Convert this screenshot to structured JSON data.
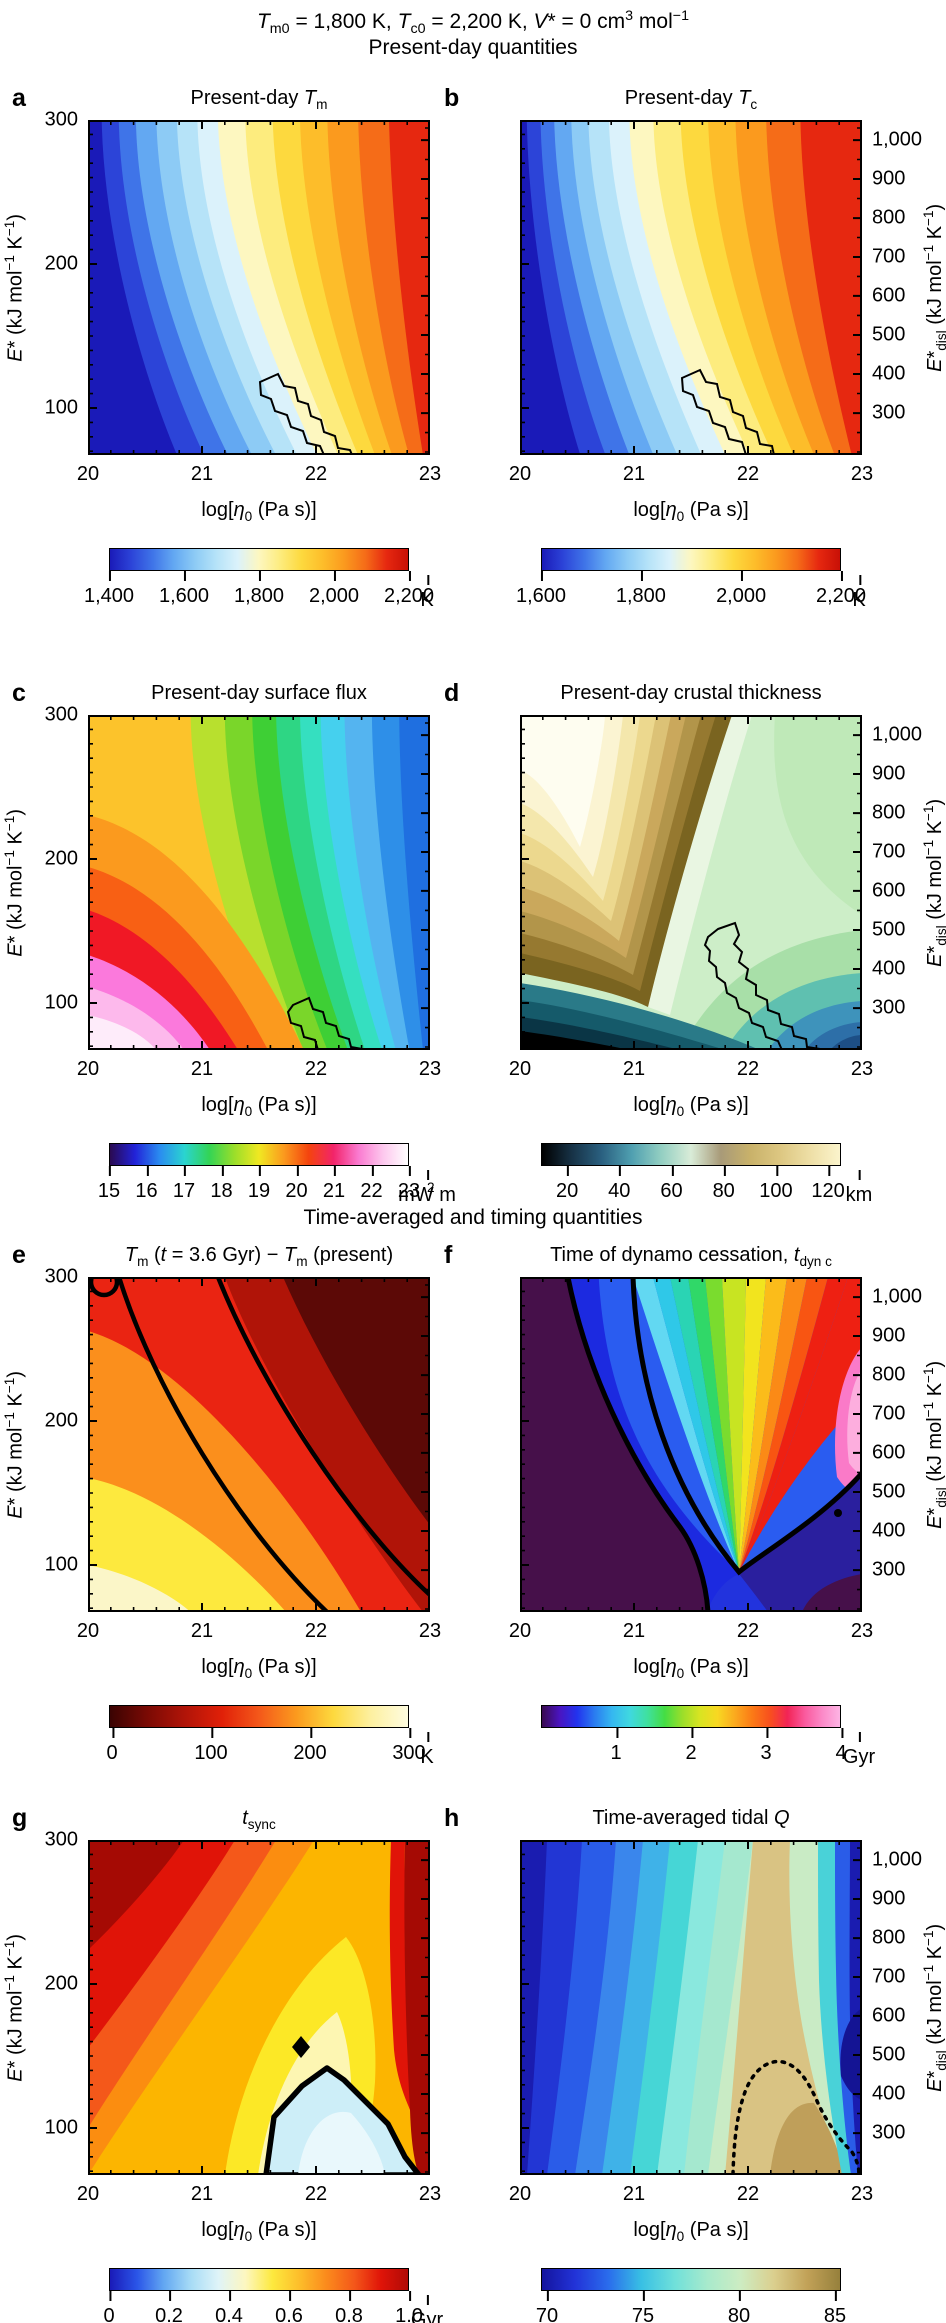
{
  "figure": {
    "suptitle_runs": [
      {
        "t": "T",
        "i": 1
      },
      {
        "t": "m0",
        "sub": 1
      },
      {
        "t": " = 1,800 K, "
      },
      {
        "t": "T",
        "i": 1
      },
      {
        "t": "c0",
        "sub": 1
      },
      {
        "t": " = 2,200 K, "
      },
      {
        "t": "V",
        "i": 1
      },
      {
        "t": "* = 0 cm"
      },
      {
        "t": "3",
        "sup": 1
      },
      {
        "t": " mol"
      },
      {
        "t": "−1",
        "sup": 1
      }
    ],
    "section1": "Present-day quantities",
    "section2": "Time-averaged and timing quantities"
  },
  "axes": {
    "x_label_runs": [
      {
        "t": "log["
      },
      {
        "t": "η",
        "i": 1
      },
      {
        "t": "0",
        "sub": 1
      },
      {
        "t": " (Pa s)]"
      }
    ],
    "x_ticks": [
      "20",
      "21",
      "22",
      "23"
    ],
    "y_left_label_runs": [
      {
        "t": "E",
        "i": 1
      },
      {
        "t": "* (kJ mol"
      },
      {
        "t": "−1",
        "sup": 1
      },
      {
        "t": " K"
      },
      {
        "t": "−1",
        "sup": 1
      },
      {
        "t": ")"
      }
    ],
    "y_left_ticks": [
      "300",
      "200",
      "100"
    ],
    "y_right_label_runs": [
      {
        "t": "E",
        "i": 1
      },
      {
        "t": "*"
      },
      {
        "t": "disl",
        "sub": 1
      },
      {
        "t": " (kJ mol"
      },
      {
        "t": "−1",
        "sup": 1
      },
      {
        "t": " K"
      },
      {
        "t": "−1",
        "sup": 1
      },
      {
        "t": ")"
      }
    ],
    "y_right_ticks": [
      "1,000",
      "900",
      "800",
      "700",
      "600",
      "500",
      "400",
      "300"
    ]
  },
  "panels": [
    {
      "letter": "a",
      "title_runs": [
        {
          "t": "Present-day "
        },
        {
          "t": "T",
          "i": 1
        },
        {
          "t": "m",
          "sub": 1
        }
      ],
      "colorbar": {
        "ticks": [
          "1,400",
          "1,600",
          "1,800",
          "2,000",
          "2,200"
        ],
        "unit_runs": [
          {
            "t": "K"
          }
        ],
        "colors": [
          "#1a1ab8",
          "#2c44d8",
          "#3f74e8",
          "#63a8f2",
          "#8dcbf5",
          "#b6e3f8",
          "#dbf2fb",
          "#fdf7c0",
          "#fdec7e",
          "#fdd93e",
          "#fdbd2a",
          "#fb9a1e",
          "#f56c18",
          "#e62810",
          "#c81006"
        ]
      }
    },
    {
      "letter": "b",
      "title_runs": [
        {
          "t": "Present-day "
        },
        {
          "t": "T",
          "i": 1
        },
        {
          "t": "c",
          "sub": 1
        }
      ],
      "colorbar": {
        "ticks": [
          "1,600",
          "1,800",
          "2,000",
          "2,200"
        ],
        "unit_runs": [
          {
            "t": "K"
          }
        ],
        "colors": [
          "#1a1ab8",
          "#2c44d8",
          "#3f74e8",
          "#63a8f2",
          "#8dcbf5",
          "#b6e3f8",
          "#dbf2fb",
          "#fdf7c0",
          "#fdec7e",
          "#fdd93e",
          "#fdbd2a",
          "#fb9a1e",
          "#f56c18",
          "#e62810",
          "#c81006"
        ]
      }
    },
    {
      "letter": "c",
      "title_runs": [
        {
          "t": "Present-day surface flux"
        }
      ],
      "colorbar": {
        "ticks": [
          "15",
          "16",
          "17",
          "18",
          "19",
          "20",
          "21",
          "22",
          "23"
        ],
        "unit_runs": [
          {
            "t": "mW m"
          },
          {
            "t": "2",
            "sup": 1
          }
        ],
        "colors": [
          "#2a0a50",
          "#2222d8",
          "#2a8cf0",
          "#2ad4d0",
          "#33d455",
          "#9ade2a",
          "#f0e822",
          "#fb9a1e",
          "#f4440e",
          "#f2246a",
          "#fa7ad0",
          "#fdc8ee",
          "#ffffff"
        ]
      }
    },
    {
      "letter": "d",
      "title_runs": [
        {
          "t": "Present-day crustal thickness"
        }
      ],
      "colorbar": {
        "ticks": [
          "20",
          "40",
          "60",
          "80",
          "100",
          "120"
        ],
        "unit_runs": [
          {
            "t": "km"
          }
        ],
        "colors": [
          "#000000",
          "#173246",
          "#2a6080",
          "#4f9fb0",
          "#93cfc2",
          "#d9ecd8",
          "#a89a78",
          "#c9b26a",
          "#ddc782",
          "#eedfa6",
          "#fbf4cc"
        ]
      }
    },
    {
      "letter": "e",
      "title_runs": [
        {
          "t": "T",
          "i": 1
        },
        {
          "t": "m",
          "sub": 1
        },
        {
          "t": " ("
        },
        {
          "t": "t",
          "i": 1
        },
        {
          "t": " = 3.6 Gyr) − "
        },
        {
          "t": "T",
          "i": 1
        },
        {
          "t": "m",
          "sub": 1
        },
        {
          "t": " (present)"
        }
      ],
      "colorbar": {
        "ticks": [
          "0",
          "100",
          "200",
          "300"
        ],
        "unit_runs": [
          {
            "t": "K"
          }
        ],
        "colors": [
          "#3a0302",
          "#7a0a04",
          "#b01408",
          "#e02008",
          "#f4581a",
          "#fb9a1e",
          "#fdd93e",
          "#fdf0a0",
          "#fefce0"
        ]
      }
    },
    {
      "letter": "f",
      "title_runs": [
        {
          "t": "Time of dynamo cessation, "
        },
        {
          "t": "t",
          "i": 1
        },
        {
          "t": "dyn c",
          "sub": 1
        }
      ],
      "colorbar": {
        "ticks": [
          "1",
          "2",
          "3",
          "4"
        ],
        "unit_runs": [
          {
            "t": "Gyr"
          }
        ],
        "colors": [
          "#3a0a50",
          "#4a14c0",
          "#2233ee",
          "#2a7cf0",
          "#35b8f0",
          "#3fd8e0",
          "#3fe0a0",
          "#44dd44",
          "#9ade2a",
          "#d8e422",
          "#f8d822",
          "#fbaa1e",
          "#fb7a16",
          "#f8501e",
          "#f22456",
          "#fa5a9e",
          "#fb8ac8",
          "#fdb4e4"
        ]
      }
    },
    {
      "letter": "g",
      "title_runs": [
        {
          "t": "t",
          "i": 1
        },
        {
          "t": "sync",
          "sub": 1
        }
      ],
      "colorbar": {
        "ticks": [
          "0",
          "0.2",
          "0.4",
          "0.6",
          "0.8",
          "1.0"
        ],
        "unit_runs": [
          {
            "t": "Gyr"
          }
        ],
        "colors": [
          "#1a1ab8",
          "#2a55e8",
          "#63a8f2",
          "#a8dcf6",
          "#dff4f8",
          "#fdf7c0",
          "#fde93e",
          "#fdbd2a",
          "#fb8a1c",
          "#f4581a",
          "#e01408",
          "#b00a06"
        ]
      }
    },
    {
      "letter": "h",
      "title_runs": [
        {
          "t": "Time-averaged tidal "
        },
        {
          "t": "Q",
          "i": 1
        }
      ],
      "colorbar": {
        "ticks": [
          "70",
          "75",
          "80",
          "85"
        ],
        "unit_runs": [],
        "colors": [
          "#14149e",
          "#2233d8",
          "#2a6cec",
          "#38c0e4",
          "#6fe0da",
          "#a8eacc",
          "#cdecc2",
          "#dbcf8e",
          "#c2a258",
          "#96803c"
        ]
      }
    }
  ],
  "chart_data": [
    {
      "type": "contour",
      "panel": "a",
      "title": "Present-day Tm",
      "x_label": "log[η0 (Pa s)]",
      "x_range": [
        20,
        23
      ],
      "x_ticks": [
        20,
        21,
        22,
        23
      ],
      "y_left_label": "E* (kJ mol−1 K−1)",
      "y_left_ticks": [
        300,
        200,
        100
      ],
      "y_right_label": "E*disl (kJ mol−1 K−1)",
      "y_right_ticks": [
        1000,
        900,
        800,
        700,
        600,
        500,
        400,
        300
      ],
      "colorbar": {
        "ticks": [
          1400,
          1600,
          1800,
          2000,
          2200
        ],
        "unit": "K",
        "colormap": "blue-cyan-yellow-orange-red (jet-like)"
      },
      "field": "Tm rises from ~1,400 K (dark blue, low η0 / high E*, top-left) to >2,200 K (red, high η0, right); band boundaries near-vertical, shifting right at low E*",
      "overlay": "thin solid black outline of a jagged region near log η0 ≈ 22–22.7, E* ≈ 70–110"
    },
    {
      "type": "contour",
      "panel": "b",
      "title": "Present-day Tc",
      "x_range": [
        20,
        23
      ],
      "colorbar": {
        "ticks": [
          1600,
          1800,
          2000,
          2200
        ],
        "unit": "K"
      },
      "field": "same pattern as panel a but shifted ~0.3 dex left; red (>2,200 K) fills the right third",
      "overlay": "thin solid black jagged outline near log η0 ≈ 22–22.5, E* ≈ 70–110"
    },
    {
      "type": "contour",
      "panel": "c",
      "title": "Present-day surface flux",
      "colorbar": {
        "ticks": [
          15,
          16,
          17,
          18,
          19,
          20,
          21,
          22,
          23
        ],
        "unit": "mW m2",
        "colormap": "purple-blue-green-yellow-red-pink-white rainbow"
      },
      "field": "flux highest (~23 mW m2, pink/white) at bottom-left (low η0, low E*), decreasing rightwards through red/orange/yellow/green to ~15 mW m2 (blue) at high η0",
      "overlay": "thin solid black outline near log η0 ≈ 22–22.8 at low E*"
    },
    {
      "type": "contour",
      "panel": "d",
      "title": "Present-day crustal thickness",
      "colorbar": {
        "ticks": [
          20,
          40,
          60,
          80,
          100,
          120
        ],
        "unit": "km",
        "colormap": "black-teal-pale green-khaki-pale yellow"
      },
      "field": "thick crust (~110–120 km, cream) in upper-left wedge bounded by dark khaki chevron with vertex near log η0 ≈ 21, E* ≈ 90; ~60–80 km pale green on right; <30 km teal/black strip at bottom and bottom-right",
      "overlay": "thin solid black jagged outline at bottom-right (log η0 ≈ 22–22.8, E* < 120)"
    },
    {
      "type": "contour",
      "panel": "e",
      "title": "Tm (t = 3.6 Gyr) − Tm (present)",
      "colorbar": {
        "ticks": [
          0,
          100,
          200,
          300
        ],
        "unit": "K",
        "colormap": "dark red to pale yellow"
      },
      "field": "difference grows from ~0 K (pale yellow, bottom-left) through yellow/orange/red diagonal bands to >300 K?? inverse: darkest maroon (~0 on dark end of bar) fills right third; bands run diagonally from top-left to bottom-right",
      "overlay": "two thick solid black contour lines running diagonally across the panel plus a small closed loop at the top-left corner"
    },
    {
      "type": "contour",
      "panel": "f",
      "title": "Time of dynamo cessation, tdyn c",
      "colorbar": {
        "ticks": [
          1,
          2,
          3,
          4
        ],
        "unit": "Gyr",
        "colormap": "discrete purple-blue-cyan-green-yellow-orange-red-pink steps"
      },
      "field": "dark purple region (left ~third and bottom) = earliest cessation; rainbow fan of bands (blue→cyan→green→yellow→orange→red→pink ≈ 1→4 Gyr) converging to a vertex near log η0 ≈ 22.1, Edisl ≈ 320; dark indigo pocket at bottom-right",
      "overlay": "thick solid black contours separating the purple region, the banded fan and the bottom-right pocket; small black dot near right edge"
    },
    {
      "type": "contour",
      "panel": "g",
      "title": "tsync",
      "colorbar": {
        "ticks": [
          0,
          0.2,
          0.4,
          0.6,
          0.8,
          1.0
        ],
        "unit": "Gyr",
        "colormap": "blue-pale-yellow-orange-red (jet-like)"
      },
      "field": "long sync times (dark red ~1 Gyr) at top-left and along right edge; jagged diagonal orange/gold bands across middle; short times (pale blue ~0–0.1 Gyr) in a lobe at bottom-centre-right",
      "overlay": "thick solid black contour around the pale-blue lobe (log η0 ≈ 22–23, low E*) and a small black diamond just above it"
    },
    {
      "type": "contour",
      "panel": "h",
      "title": "Time-averaged tidal Q",
      "colorbar": {
        "ticks": [
          70,
          75,
          80,
          85
        ],
        "unit": "",
        "colormap": "dark blue-cyan-pale green-tan/khaki"
      },
      "field": "Q ≈ 70 (dark blue) along left edge and in narrow bands at the far right edge; increases rightwards through cyan and pale green to ~82–85 (tan/khaki) around log η0 ≈ 22–22.5",
      "overlay": "dotted black contour enclosing the highest-Q tan region at bottom-right"
    }
  ]
}
